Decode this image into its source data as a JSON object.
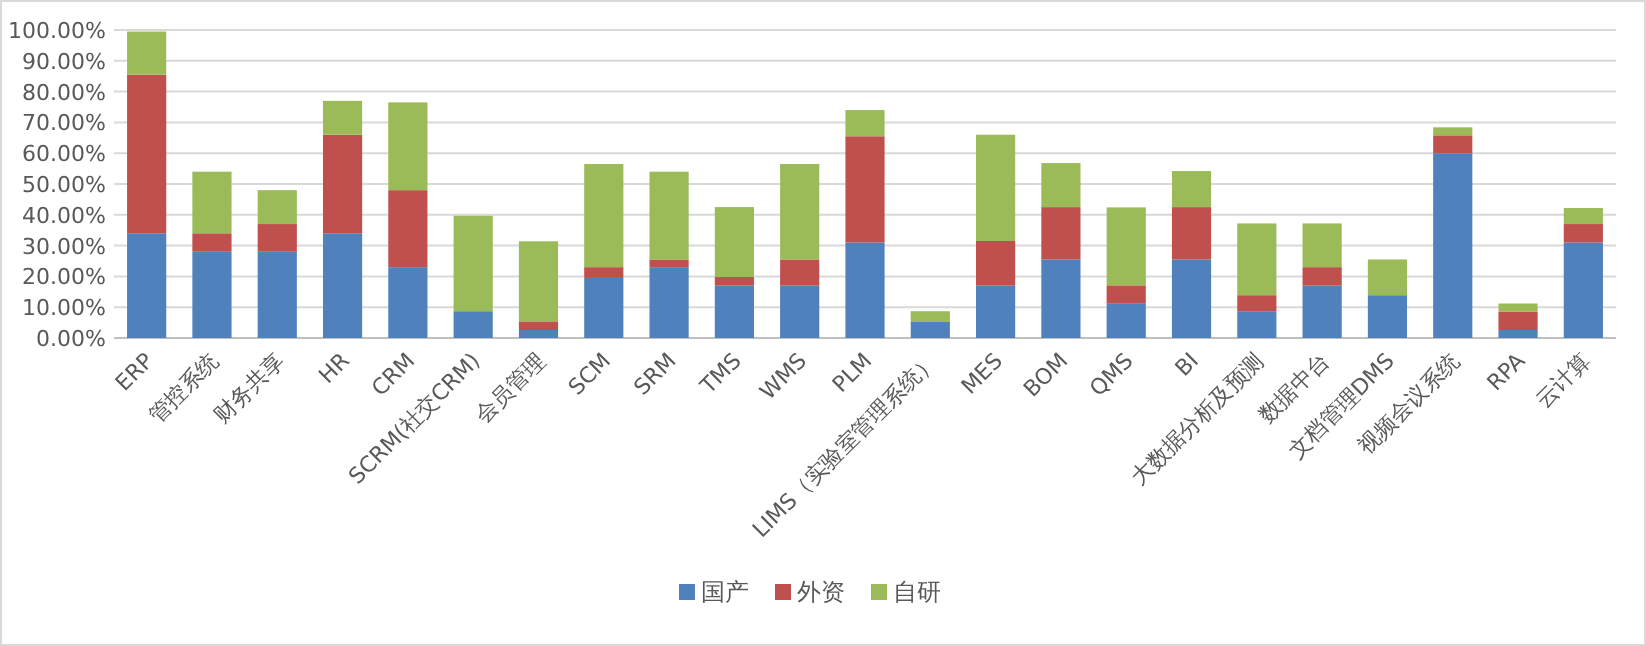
{
  "chart_data": {
    "type": "bar",
    "stacked": true,
    "grid": "y",
    "legend": "bottom",
    "categories": [
      "ERP",
      "管控系统",
      "财务共享",
      "HR",
      "CRM",
      "SCRM(社交CRM)",
      "会员管理",
      "SCM",
      "SRM",
      "TMS",
      "WMS",
      "PLM",
      "LIMS（实验室管理系统）",
      "MES",
      "BOM",
      "QMS",
      "BI",
      "大数据分析及预测",
      "数据中台",
      "文档管理DMS",
      "视频会议系统",
      "RPA",
      "云计算"
    ],
    "series": [
      {
        "name": "国产",
        "color": "#4f81bd",
        "values": [
          34,
          28,
          28,
          34,
          23,
          8.7,
          2.6,
          19.5,
          23,
          17,
          17,
          31,
          5.2,
          17,
          25.5,
          11.3,
          25.5,
          8.7,
          17,
          13.9,
          60,
          2.6,
          31
        ]
      },
      {
        "name": "外资",
        "color": "#c0504d",
        "values": [
          51.5,
          6,
          9,
          32,
          25,
          0,
          2.8,
          3.5,
          2.5,
          2.8,
          8.5,
          34.5,
          0,
          14.5,
          17,
          5.8,
          17,
          5.2,
          6,
          0,
          5.8,
          6,
          6
        ]
      },
      {
        "name": "自研",
        "color": "#9bbb59",
        "values": [
          14,
          20,
          11,
          11,
          28.5,
          31,
          26,
          33.5,
          28.5,
          22.7,
          31,
          8.5,
          3.5,
          34.5,
          14.3,
          25.3,
          11.7,
          23.3,
          14.2,
          11.6,
          2.6,
          2.6,
          5.2
        ]
      }
    ],
    "ylim": [
      0,
      100
    ],
    "yticks": [
      {
        "value": 0,
        "label": "0.00%"
      },
      {
        "value": 10,
        "label": "10.00%"
      },
      {
        "value": 20,
        "label": "20.00%"
      },
      {
        "value": 30,
        "label": "30.00%"
      },
      {
        "value": 40,
        "label": "40.00%"
      },
      {
        "value": 50,
        "label": "50.00%"
      },
      {
        "value": 60,
        "label": "60.00%"
      },
      {
        "value": 70,
        "label": "70.00%"
      },
      {
        "value": 80,
        "label": "80.00%"
      },
      {
        "value": 90,
        "label": "90.00%"
      },
      {
        "value": 100,
        "label": "100.00%"
      }
    ]
  }
}
